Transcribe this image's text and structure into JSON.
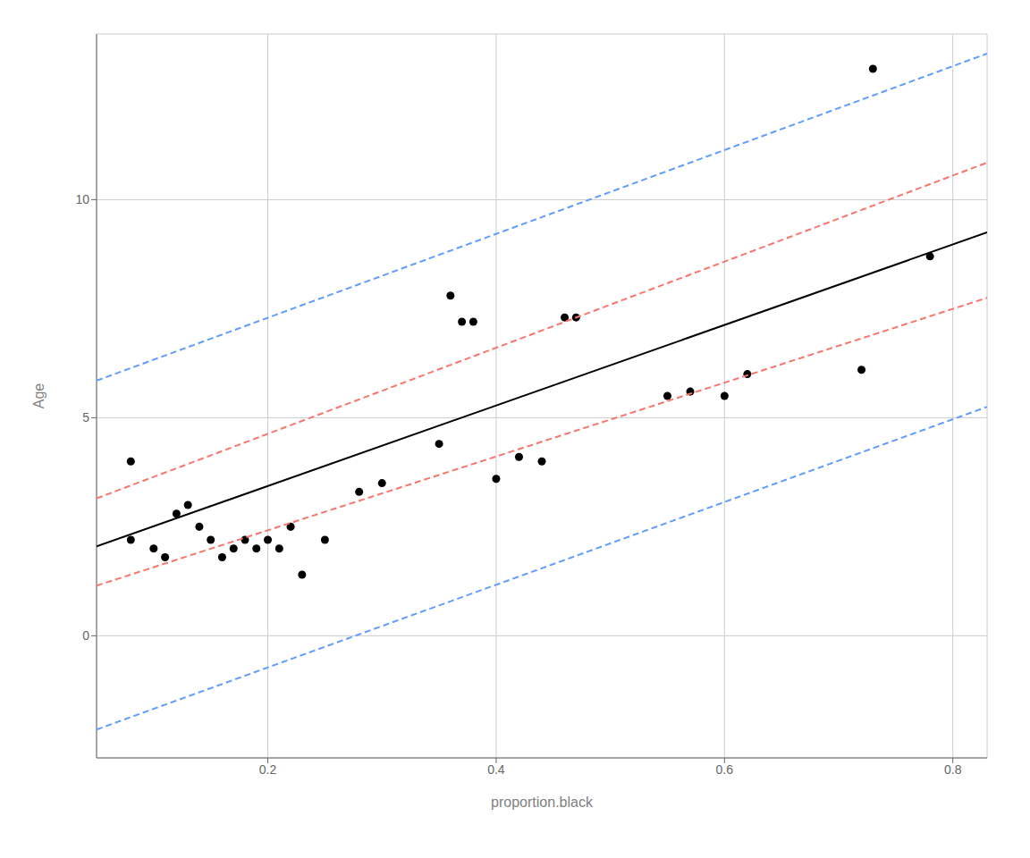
{
  "chart_data": {
    "type": "scatter",
    "xlabel": "proportion.black",
    "ylabel": "Age",
    "xlim": [
      0.05,
      0.83
    ],
    "ylim": [
      -2.8,
      13.8
    ],
    "xticks": [
      0.2,
      0.4,
      0.6,
      0.8
    ],
    "yticks": [
      0,
      5,
      10
    ],
    "grid": true,
    "series": [
      {
        "type": "scatter",
        "color": "#000000",
        "marker": "circle",
        "x": [
          0.08,
          0.08,
          0.1,
          0.11,
          0.12,
          0.13,
          0.14,
          0.15,
          0.16,
          0.17,
          0.18,
          0.19,
          0.2,
          0.21,
          0.22,
          0.23,
          0.25,
          0.28,
          0.3,
          0.35,
          0.36,
          0.37,
          0.38,
          0.4,
          0.42,
          0.44,
          0.46,
          0.47,
          0.55,
          0.57,
          0.6,
          0.62,
          0.72,
          0.78,
          0.73
        ],
        "values": [
          2.2,
          4.0,
          2.0,
          1.8,
          2.8,
          3.0,
          2.5,
          2.2,
          1.8,
          2.0,
          2.2,
          2.0,
          2.2,
          2.0,
          2.5,
          1.4,
          2.2,
          3.3,
          3.5,
          4.4,
          7.8,
          7.2,
          7.2,
          3.6,
          4.1,
          4.0,
          7.3,
          7.3,
          5.5,
          5.6,
          5.5,
          6.0,
          6.1,
          8.7,
          13.0
        ]
      },
      {
        "type": "line",
        "color": "#000000",
        "line_style": "solid",
        "x": [
          0.05,
          0.83
        ],
        "values": [
          2.05,
          9.25
        ]
      },
      {
        "type": "line",
        "color": "#f8766d",
        "line_style": "dashed",
        "x": [
          0.05,
          0.83
        ],
        "values": [
          3.15,
          10.85
        ]
      },
      {
        "type": "line",
        "color": "#f8766d",
        "line_style": "dashed",
        "x": [
          0.05,
          0.83
        ],
        "values": [
          1.15,
          7.75
        ]
      },
      {
        "type": "line",
        "color": "#619cff",
        "line_style": "dashed",
        "x": [
          0.05,
          0.83
        ],
        "values": [
          5.85,
          13.35
        ]
      },
      {
        "type": "line",
        "color": "#619cff",
        "line_style": "dashed",
        "x": [
          0.05,
          0.83
        ],
        "values": [
          -2.15,
          5.25
        ]
      }
    ]
  }
}
